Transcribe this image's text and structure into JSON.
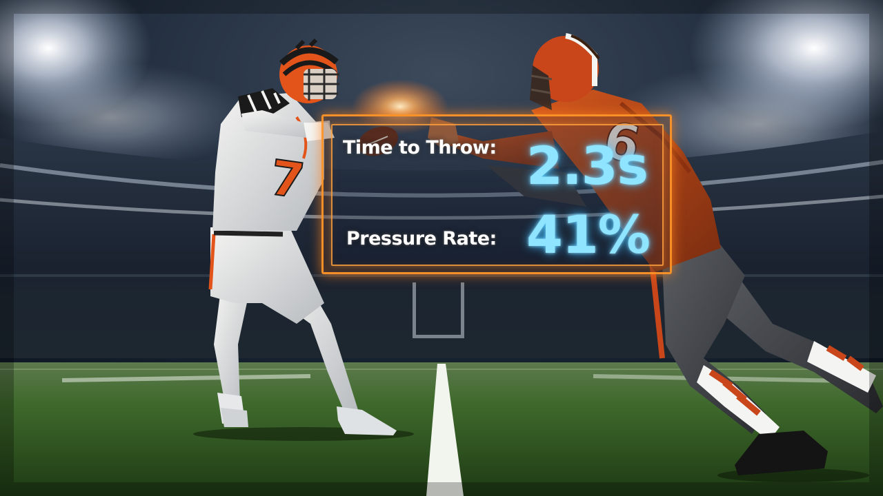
{
  "overlay": {
    "stats": [
      {
        "label": "Time to Throw:",
        "value": "2.3s"
      },
      {
        "label": "Pressure Rate:",
        "value": "41%"
      }
    ],
    "colors": {
      "frame": "#ff9628",
      "value": "#8fe4ff",
      "label": "#ffffff"
    }
  },
  "players": {
    "quarterback": {
      "jersey_number": "7",
      "team_colors": [
        "#ffffff",
        "#e2541a",
        "#111111"
      ]
    },
    "defender": {
      "jersey_number": "6",
      "team_colors": [
        "#c8461a",
        "#3a3a3c",
        "#ffffff"
      ]
    }
  }
}
